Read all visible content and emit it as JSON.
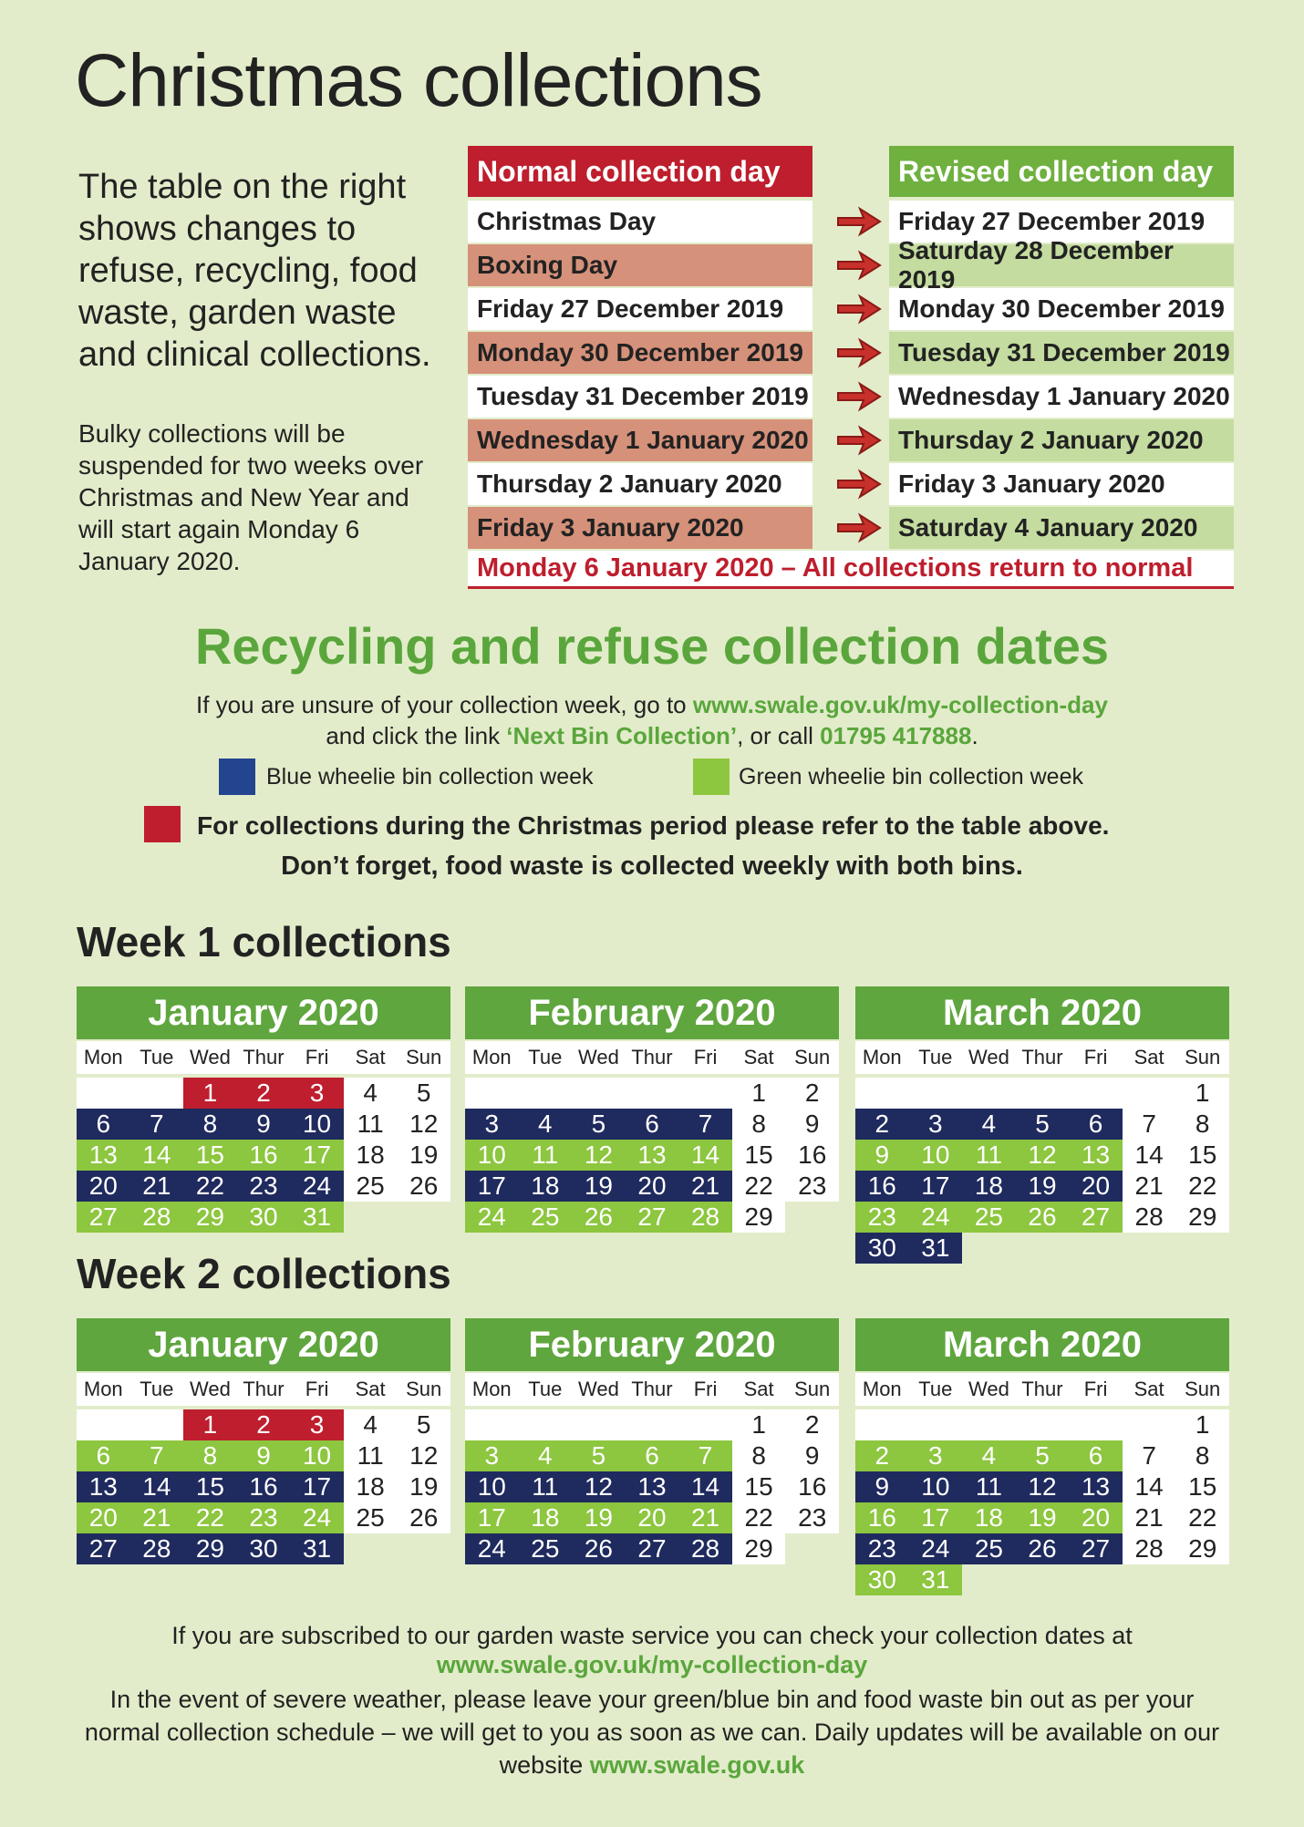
{
  "title": "Christmas collections",
  "intro": "The table on the right shows changes to refuse, recycling, food waste, garden waste and clinical collections.",
  "bulky": "Bulky collections will be suspended for two weeks over Christmas and New Year and will start again Monday 6 January 2020.",
  "changes": {
    "headers": [
      "Normal collection day",
      "Revised collection day"
    ],
    "rows": [
      [
        "Christmas Day",
        "Friday 27 December 2019"
      ],
      [
        "Boxing Day",
        "Saturday 28 December 2019"
      ],
      [
        "Friday 27 December 2019",
        "Monday 30 December 2019"
      ],
      [
        "Monday 30 December 2019",
        "Tuesday 31 December 2019"
      ],
      [
        "Tuesday 31 December 2019",
        "Wednesday 1 January 2020"
      ],
      [
        "Wednesday 1 January 2020",
        "Thursday 2 January 2020"
      ],
      [
        "Thursday 2  January 2020",
        "Friday 3 January 2020"
      ],
      [
        "Friday 3 January 2020",
        "Saturday 4 January 2020"
      ]
    ],
    "footer": "Monday 6 January 2020  –  All collections return to normal"
  },
  "section_title": "Recycling and refuse collection dates",
  "info": [
    "If you are unsure of your collection week, go to ",
    "www.swale.gov.uk/my-collection-day",
    "and click the link ",
    "‘Next Bin Collection’",
    ", or call ",
    "01795 417888",
    "."
  ],
  "legend": [
    {
      "label": "Blue wheelie bin collection week",
      "color": "#23448f"
    },
    {
      "label": "Green wheelie bin collection week",
      "color": "#8dc63f"
    },
    {
      "label": "For collections during the Christmas period please refer to the table above.",
      "color": "#be1e2d"
    }
  ],
  "note": "Don’t forget, food waste is collected weekly with both bins.",
  "weekdays": [
    "Mon",
    "Tue",
    "Wed",
    "Thur",
    "Fri",
    "Sat",
    "Sun"
  ],
  "fills": {
    "blue": "#1f2a5e",
    "green": "#8dc63f",
    "red": "#be1e2d"
  },
  "weeks": [
    {
      "title": "Week 1 collections",
      "months": [
        {
          "name": "January 2020",
          "rows": [
            {
              "fill": "red",
              "days": [
                null,
                null,
                1,
                2,
                3,
                4,
                5
              ]
            },
            {
              "fill": "blue",
              "days": [
                6,
                7,
                8,
                9,
                10,
                11,
                12
              ]
            },
            {
              "fill": "green",
              "days": [
                13,
                14,
                15,
                16,
                17,
                18,
                19
              ]
            },
            {
              "fill": "blue",
              "days": [
                20,
                21,
                22,
                23,
                24,
                25,
                26
              ]
            },
            {
              "fill": "green",
              "days": [
                27,
                28,
                29,
                30,
                31,
                null,
                null
              ]
            }
          ]
        },
        {
          "name": "February 2020",
          "rows": [
            {
              "fill": "none",
              "days": [
                null,
                null,
                null,
                null,
                null,
                1,
                2
              ]
            },
            {
              "fill": "blue",
              "days": [
                3,
                4,
                5,
                6,
                7,
                8,
                9
              ]
            },
            {
              "fill": "green",
              "days": [
                10,
                11,
                12,
                13,
                14,
                15,
                16
              ]
            },
            {
              "fill": "blue",
              "days": [
                17,
                18,
                19,
                20,
                21,
                22,
                23
              ]
            },
            {
              "fill": "green",
              "days": [
                24,
                25,
                26,
                27,
                28,
                29,
                null
              ]
            }
          ]
        },
        {
          "name": "March 2020",
          "rows": [
            {
              "fill": "none",
              "days": [
                null,
                null,
                null,
                null,
                null,
                null,
                1
              ]
            },
            {
              "fill": "blue",
              "days": [
                2,
                3,
                4,
                5,
                6,
                7,
                8
              ]
            },
            {
              "fill": "green",
              "days": [
                9,
                10,
                11,
                12,
                13,
                14,
                15
              ]
            },
            {
              "fill": "blue",
              "days": [
                16,
                17,
                18,
                19,
                20,
                21,
                22
              ]
            },
            {
              "fill": "green",
              "days": [
                23,
                24,
                25,
                26,
                27,
                28,
                29
              ]
            },
            {
              "fill": "blue",
              "days": [
                30,
                31,
                null,
                null,
                null,
                null,
                null
              ]
            }
          ]
        }
      ]
    },
    {
      "title": "Week 2 collections",
      "months": [
        {
          "name": "January 2020",
          "rows": [
            {
              "fill": "red",
              "days": [
                null,
                null,
                1,
                2,
                3,
                4,
                5
              ]
            },
            {
              "fill": "green",
              "days": [
                6,
                7,
                8,
                9,
                10,
                11,
                12
              ]
            },
            {
              "fill": "blue",
              "days": [
                13,
                14,
                15,
                16,
                17,
                18,
                19
              ]
            },
            {
              "fill": "green",
              "days": [
                20,
                21,
                22,
                23,
                24,
                25,
                26
              ]
            },
            {
              "fill": "blue",
              "days": [
                27,
                28,
                29,
                30,
                31,
                null,
                null
              ]
            }
          ]
        },
        {
          "name": "February 2020",
          "rows": [
            {
              "fill": "none",
              "days": [
                null,
                null,
                null,
                null,
                null,
                1,
                2
              ]
            },
            {
              "fill": "green",
              "days": [
                3,
                4,
                5,
                6,
                7,
                8,
                9
              ]
            },
            {
              "fill": "blue",
              "days": [
                10,
                11,
                12,
                13,
                14,
                15,
                16
              ]
            },
            {
              "fill": "green",
              "days": [
                17,
                18,
                19,
                20,
                21,
                22,
                23
              ]
            },
            {
              "fill": "blue",
              "days": [
                24,
                25,
                26,
                27,
                28,
                29,
                null
              ]
            }
          ]
        },
        {
          "name": "March 2020",
          "rows": [
            {
              "fill": "none",
              "days": [
                null,
                null,
                null,
                null,
                null,
                null,
                1
              ]
            },
            {
              "fill": "green",
              "days": [
                2,
                3,
                4,
                5,
                6,
                7,
                8
              ]
            },
            {
              "fill": "blue",
              "days": [
                9,
                10,
                11,
                12,
                13,
                14,
                15
              ]
            },
            {
              "fill": "green",
              "days": [
                16,
                17,
                18,
                19,
                20,
                21,
                22
              ]
            },
            {
              "fill": "blue",
              "days": [
                23,
                24,
                25,
                26,
                27,
                28,
                29
              ]
            },
            {
              "fill": "green",
              "days": [
                30,
                31,
                null,
                null,
                null,
                null,
                null
              ]
            }
          ]
        }
      ]
    }
  ],
  "footer": [
    "If you are subscribed to our garden waste service you can check your collection dates at",
    "www.swale.gov.uk/my-collection-day",
    "In the event of severe weather, please leave your green/blue bin and food waste bin out as per your normal collection schedule – we will get to you as soon as we can. Daily updates will be available on our website ",
    "www.swale.gov.uk"
  ]
}
